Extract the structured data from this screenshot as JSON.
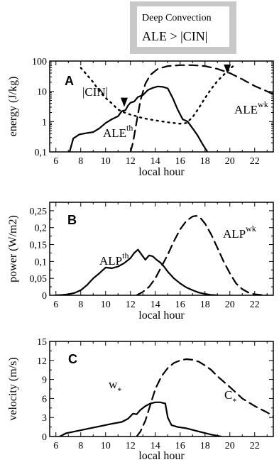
{
  "callout": {
    "title": "Deep Convection",
    "text": "ALE > |CIN|"
  },
  "chart_data": [
    {
      "panel": "A",
      "type": "line",
      "xlabel": "local hour",
      "ylabel": "energy (J/kg)",
      "xlim": [
        5.5,
        23.5
      ],
      "ylim": [
        0.1,
        100
      ],
      "yscale": "log",
      "xticks": [
        6,
        8,
        10,
        12,
        14,
        16,
        18,
        20,
        22
      ],
      "yticks": [
        0.1,
        1,
        10,
        100
      ],
      "ytick_labels": [
        "0,1",
        "1",
        "10",
        "100"
      ],
      "series": [
        {
          "name": "ALE th",
          "label_main": "ALE",
          "label_sup": "th",
          "style": "solid",
          "x": [
            7.1,
            7.4,
            7.9,
            8.5,
            9.0,
            9.5,
            10.0,
            10.5,
            11.0,
            11.3,
            11.6,
            11.8,
            12.0,
            12.3,
            12.6,
            13.0,
            13.4,
            13.8,
            14.2,
            14.6,
            15.0,
            15.4,
            15.8,
            16.2,
            16.6,
            17.0,
            17.4,
            17.8,
            18.2
          ],
          "y": [
            0.1,
            0.28,
            0.38,
            0.42,
            0.45,
            0.6,
            0.9,
            1.2,
            1.5,
            2.2,
            2.4,
            3.4,
            4.2,
            4.6,
            6.5,
            7.5,
            11.0,
            13.0,
            14.5,
            14.0,
            12.5,
            6.0,
            2.5,
            1.2,
            1.0,
            0.6,
            0.35,
            0.18,
            0.1
          ]
        },
        {
          "name": "ALE wk",
          "label_main": "ALE",
          "label_sup": "wk",
          "style": "dashed",
          "x": [
            12.0,
            12.2,
            12.5,
            12.8,
            13.2,
            13.6,
            14.2,
            15.0,
            16.0,
            17.0,
            18.0,
            19.0,
            20.0,
            21.0,
            22.0,
            23.0,
            23.5
          ],
          "y": [
            0.1,
            0.2,
            1.0,
            5.0,
            18.0,
            35.0,
            55.0,
            68.0,
            73.0,
            73.0,
            68.0,
            55.0,
            40.0,
            25.0,
            15.0,
            10.0,
            8.0
          ]
        },
        {
          "name": "|CIN|",
          "label_main": "|CIN|",
          "style": "dotted",
          "x": [
            8.0,
            8.5,
            9.0,
            9.5,
            10.0,
            10.5,
            11.0,
            11.5,
            12.0,
            12.5,
            13.0,
            14.0,
            15.0,
            16.0,
            16.5,
            17.0,
            17.5,
            18.0,
            18.5,
            19.0,
            19.5,
            20.0,
            20.3
          ],
          "y": [
            60.0,
            35.0,
            20.0,
            10.0,
            6.0,
            4.0,
            2.5,
            2.0,
            1.7,
            1.5,
            1.3,
            1.1,
            0.95,
            0.85,
            0.9,
            1.4,
            2.8,
            6.0,
            12.0,
            22.0,
            35.0,
            55.0,
            70.0
          ]
        }
      ],
      "markers": [
        {
          "x": 11.5,
          "y": 4.0
        },
        {
          "x": 19.8,
          "y": 50.0
        }
      ]
    },
    {
      "panel": "B",
      "type": "line",
      "xlabel": "local hour",
      "ylabel": "power (W/m2)",
      "xlim": [
        5.5,
        23.5
      ],
      "ylim": [
        0,
        0.275
      ],
      "xticks": [
        6,
        8,
        10,
        12,
        14,
        16,
        18,
        20,
        22
      ],
      "yticks": [
        0,
        0.05,
        0.1,
        0.15,
        0.2,
        0.25
      ],
      "ytick_labels": [
        "0",
        "0,05",
        "0,1",
        "0,15",
        "0,2",
        "0,25"
      ],
      "series": [
        {
          "name": "ALP th",
          "label_main": "ALP",
          "label_sup": "th",
          "style": "solid",
          "x": [
            6.0,
            6.5,
            7.0,
            7.5,
            8.0,
            8.5,
            9.0,
            9.5,
            10.0,
            10.5,
            11.0,
            11.5,
            12.0,
            12.3,
            12.6,
            12.9,
            13.2,
            13.5,
            13.8,
            14.1,
            14.4,
            14.7,
            15.0,
            15.5,
            16.0,
            16.5,
            17.0,
            17.5,
            18.0,
            18.5,
            19.0
          ],
          "y": [
            0.0,
            0.001,
            0.003,
            0.007,
            0.015,
            0.03,
            0.05,
            0.065,
            0.082,
            0.08,
            0.085,
            0.095,
            0.11,
            0.125,
            0.135,
            0.12,
            0.105,
            0.118,
            0.115,
            0.105,
            0.097,
            0.085,
            0.07,
            0.05,
            0.035,
            0.023,
            0.015,
            0.008,
            0.004,
            0.001,
            0.0
          ]
        },
        {
          "name": "ALP wk",
          "label_main": "ALP",
          "label_sup": "wk",
          "style": "dashed",
          "x": [
            12.5,
            13.0,
            13.5,
            14.0,
            14.5,
            15.0,
            15.5,
            16.0,
            16.5,
            17.0,
            17.3,
            17.6,
            18.0,
            18.5,
            19.0,
            19.5,
            20.0,
            20.5,
            21.0,
            21.5,
            22.0,
            22.5,
            23.0
          ],
          "y": [
            0.0,
            0.01,
            0.025,
            0.05,
            0.085,
            0.12,
            0.16,
            0.195,
            0.22,
            0.233,
            0.235,
            0.23,
            0.212,
            0.18,
            0.14,
            0.1,
            0.065,
            0.035,
            0.018,
            0.008,
            0.003,
            0.001,
            0.0
          ]
        }
      ]
    },
    {
      "panel": "C",
      "type": "line",
      "xlabel": "local hour",
      "ylabel": "velocity (m/s)",
      "xlim": [
        5.5,
        23.5
      ],
      "ylim": [
        0,
        15
      ],
      "xticks": [
        6,
        8,
        10,
        12,
        14,
        16,
        18,
        20,
        22
      ],
      "yticks": [
        0,
        3,
        6,
        9,
        12,
        15
      ],
      "ytick_labels": [
        "0",
        "3",
        "6",
        "9",
        "12",
        "15"
      ],
      "series": [
        {
          "name": "w*",
          "label_main": "w",
          "label_sub": "*",
          "style": "solid",
          "x": [
            6.3,
            6.8,
            7.5,
            8.5,
            9.5,
            10.5,
            11.3,
            11.8,
            12.2,
            12.5,
            12.8,
            13.2,
            13.6,
            14.0,
            14.4,
            14.8,
            15.0,
            15.3,
            15.8,
            16.5,
            17.5,
            18.5,
            19.3
          ],
          "y": [
            0.0,
            0.5,
            0.8,
            1.2,
            1.6,
            2.0,
            2.3,
            2.8,
            3.6,
            3.5,
            4.2,
            4.8,
            5.2,
            5.4,
            5.4,
            5.2,
            3.0,
            1.8,
            1.5,
            1.3,
            0.8,
            0.3,
            0.0
          ]
        },
        {
          "name": "C*",
          "label_main": "C",
          "label_sub": "*",
          "style": "dashed",
          "x": [
            12.5,
            12.8,
            13.2,
            13.6,
            14.0,
            14.5,
            15.0,
            15.5,
            16.0,
            16.5,
            17.0,
            17.5,
            18.0,
            18.5,
            19.0,
            20.0,
            21.0,
            22.0,
            23.0,
            23.5
          ],
          "y": [
            0.0,
            0.8,
            2.5,
            5.0,
            7.5,
            9.5,
            10.8,
            11.6,
            12.0,
            12.2,
            12.1,
            11.8,
            11.2,
            10.5,
            9.5,
            7.8,
            6.0,
            4.8,
            3.8,
            3.2
          ]
        }
      ]
    }
  ]
}
